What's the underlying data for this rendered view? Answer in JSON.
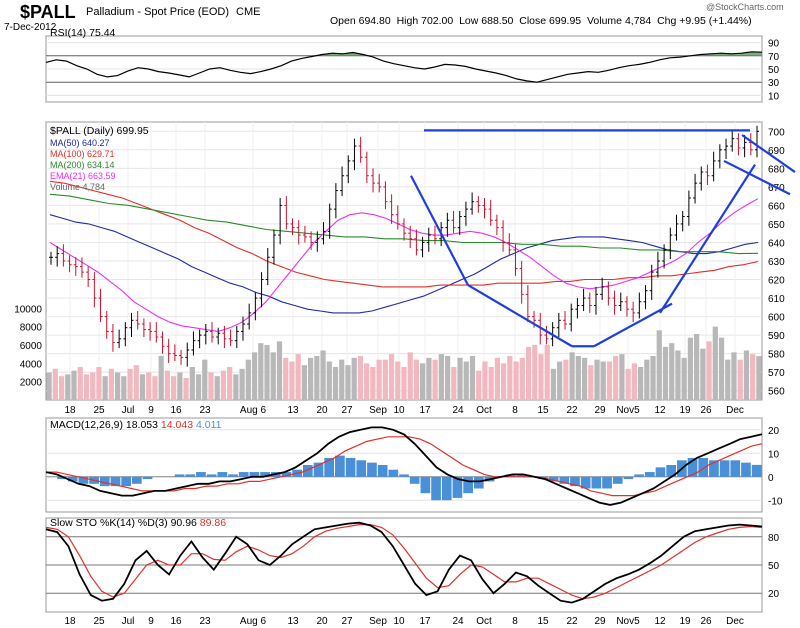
{
  "header": {
    "symbol": "$PALL",
    "name": "Palladium - Spot Price (EOD)",
    "exchange": "CME",
    "date": "7-Dec-2012",
    "open_label": "Open",
    "open": "694.80",
    "high_label": "High",
    "high": "702.00",
    "low_label": "Low",
    "low": "688.50",
    "close_label": "Close",
    "close": "699.95",
    "volume_label": "Volume",
    "volume": "4,784",
    "chg_label": "Chg",
    "chg": "+9.95 (+1.44%)",
    "watermark": "@StockCharts.com"
  },
  "colors": {
    "ma50": "#1f2aa8",
    "ma100": "#e0302a",
    "ma200": "#2c8a2c",
    "ema21": "#ee2fee",
    "price_up": "#000000",
    "price_down": "#c8102e",
    "trendline": "#1f3fdd",
    "macd_line": "#000000",
    "macd_signal": "#e0302a",
    "macd_hist": "#4a90d9",
    "rsi_fill": "#5a9a5a",
    "vol_up": "#b8b8b8",
    "vol_down": "#f2b8c0"
  },
  "chart_data": [
    {
      "type": "line",
      "panel": "RSI",
      "label": "RSI(14)",
      "value_label": "75.44",
      "ylim": [
        0,
        100
      ],
      "ticks": [
        90,
        70,
        50,
        30,
        10
      ],
      "reference_lines": [
        70,
        30
      ],
      "x": [
        0,
        2,
        4,
        6,
        8,
        10,
        12,
        14,
        16,
        18,
        20,
        22,
        24,
        26,
        28,
        30,
        32,
        34,
        36,
        38,
        40,
        42,
        44,
        46,
        48,
        50,
        52,
        54,
        56,
        58,
        60,
        62,
        64,
        66,
        68,
        70,
        72,
        74,
        76,
        78,
        80,
        82,
        84,
        86,
        88,
        90,
        92,
        94,
        96,
        98,
        100,
        102,
        104,
        106,
        108,
        110,
        112,
        114,
        116,
        118,
        120,
        122,
        124,
        126,
        128,
        130,
        132,
        134,
        136,
        138,
        140
      ],
      "values": [
        60,
        64,
        62,
        55,
        50,
        42,
        38,
        40,
        47,
        52,
        50,
        46,
        44,
        41,
        38,
        44,
        50,
        52,
        48,
        45,
        43,
        46,
        50,
        55,
        62,
        66,
        69,
        72,
        74,
        73,
        75,
        72,
        68,
        62,
        58,
        55,
        52,
        50,
        53,
        57,
        56,
        54,
        50,
        47,
        44,
        40,
        35,
        32,
        30,
        34,
        38,
        42,
        44,
        46,
        45,
        48,
        52,
        55,
        57,
        60,
        64,
        67,
        68,
        70,
        72,
        73,
        74,
        73,
        74,
        76,
        75.44
      ]
    },
    {
      "type": "ohlc",
      "panel": "Price",
      "title": "$PALL (Daily) 699.95",
      "ylim": [
        555,
        705
      ],
      "ticks": [
        700,
        690,
        680,
        670,
        660,
        650,
        640,
        630,
        620,
        610,
        600,
        590,
        580,
        570,
        560
      ],
      "x_ticks": [
        "18",
        "25",
        "Jul",
        "9",
        "16",
        "23",
        "Aug 6",
        "13",
        "20",
        "27",
        "Sep",
        "10",
        "17",
        "24",
        "Oct",
        "8",
        "15",
        "22",
        "29",
        "Nov5",
        "12",
        "19",
        "26",
        "Dec"
      ],
      "closes": [
        632,
        634,
        630,
        628,
        627,
        624,
        620,
        610,
        600,
        592,
        586,
        588,
        594,
        598,
        596,
        593,
        592,
        589,
        584,
        580,
        579,
        578,
        582,
        587,
        590,
        592,
        589,
        591,
        588,
        587,
        592,
        596,
        602,
        610,
        620,
        632,
        644,
        660,
        650,
        648,
        644,
        643,
        640,
        642,
        646,
        658,
        668,
        676,
        684,
        692,
        686,
        676,
        672,
        670,
        662,
        655,
        650,
        645,
        642,
        636,
        640,
        644,
        642,
        648,
        652,
        648,
        654,
        658,
        662,
        660,
        658,
        652,
        648,
        640,
        636,
        626,
        612,
        600,
        598,
        590,
        588,
        594,
        598,
        596,
        604,
        606,
        610,
        606,
        612,
        616,
        610,
        606,
        608,
        604,
        602,
        608,
        614,
        624,
        630,
        636,
        644,
        650,
        654,
        664,
        672,
        678,
        676,
        684,
        690,
        692,
        696,
        691,
        694,
        690,
        699.95
      ],
      "series": [
        {
          "name": "MA(50) 640.27",
          "values": [
            655,
            653,
            651,
            650,
            648,
            646,
            643,
            640,
            637,
            634,
            631,
            627,
            624,
            621,
            618,
            616,
            613,
            611,
            608,
            606,
            604,
            603,
            602,
            602,
            602,
            603,
            605,
            607,
            609,
            611,
            614,
            617,
            620,
            623,
            627,
            631,
            634,
            637,
            639,
            641,
            642,
            643,
            643,
            643,
            642,
            641,
            640,
            638,
            636,
            635,
            634,
            634,
            635,
            637,
            639,
            640
          ]
        },
        {
          "name": "MA(100) 629.71",
          "values": [
            673,
            672,
            670,
            668,
            666,
            664,
            661,
            658,
            655,
            652,
            648,
            645,
            641,
            637,
            634,
            630,
            627,
            624,
            622,
            620,
            619,
            618,
            617,
            616,
            616,
            616,
            616,
            617,
            617,
            617,
            617,
            618,
            618,
            618,
            618,
            619,
            619,
            620,
            620,
            620,
            621,
            621,
            622,
            622,
            623,
            624,
            625,
            627,
            628,
            629.71
          ]
        },
        {
          "name": "MA(200) 634.14",
          "values": [
            666,
            665,
            663,
            661,
            660,
            658,
            656,
            654,
            652,
            651,
            649,
            647,
            646,
            645,
            644,
            643,
            643,
            642,
            642,
            641,
            641,
            640,
            640,
            640,
            639,
            639,
            638,
            638,
            637,
            637,
            636,
            636,
            635,
            635,
            635,
            634,
            634.14
          ]
        },
        {
          "name": "EMA(21) 663.59",
          "values": [
            640,
            636,
            632,
            628,
            624,
            619,
            614,
            608,
            604,
            600,
            597,
            595,
            594,
            593,
            592,
            594,
            597,
            602,
            608,
            616,
            624,
            632,
            640,
            646,
            652,
            655,
            656,
            655,
            653,
            650,
            647,
            645,
            644,
            644,
            645,
            646,
            645,
            643,
            640,
            636,
            632,
            627,
            622,
            618,
            616,
            615,
            616,
            617,
            619,
            621,
            624,
            627,
            630,
            634,
            640,
            645,
            651,
            656,
            660,
            663.59
          ]
        }
      ],
      "volume": {
        "label": "Volume 4,784",
        "ticks": [
          10000,
          8000,
          6000,
          4000,
          2000
        ],
        "values": [
          3000,
          3400,
          2600,
          2800,
          3200,
          3600,
          2800,
          3000,
          3600,
          2600,
          3400,
          3000,
          2600,
          3400,
          3800,
          2800,
          3000,
          2600,
          4800,
          3200,
          2600,
          3000,
          2400,
          3600,
          2800,
          4400,
          3000,
          2600,
          3200,
          3600,
          2800,
          3400,
          4400,
          5200,
          6200,
          6000,
          5200,
          6400,
          4600,
          4200,
          5000,
          3800,
          4600,
          4800,
          5400,
          4200,
          3600,
          4400,
          3800,
          4600,
          4800,
          4000,
          3600,
          4400,
          4400,
          5000,
          4200,
          3600,
          5200,
          4400,
          4000,
          4600,
          4400,
          5000,
          4800,
          3600,
          4600,
          4200,
          4800,
          3200,
          4200,
          3600,
          4600,
          4000,
          4800,
          4200,
          4600,
          5800,
          6000,
          5000,
          6000,
          3400,
          4200,
          4400,
          5200,
          4800,
          4600,
          3800,
          4400,
          4200,
          4200,
          4800,
          5000,
          3400,
          4000,
          3600,
          4400,
          4800,
          7600,
          5800,
          6200,
          5400,
          4600,
          6800,
          7200,
          5600,
          6400,
          8000,
          6800,
          4400,
          5200,
          4400,
          5400,
          5000,
          4784
        ],
        "up": [
          1,
          0,
          0,
          1,
          1,
          0,
          0,
          0,
          0,
          1,
          0,
          1,
          1,
          0,
          0,
          1,
          0,
          0,
          1,
          0,
          0,
          1,
          0,
          1,
          1,
          1,
          0,
          1,
          0,
          0,
          1,
          1,
          1,
          1,
          1,
          1,
          1,
          1,
          0,
          0,
          0,
          1,
          1,
          1,
          1,
          1,
          1,
          1,
          1,
          1,
          0,
          0,
          0,
          0,
          0,
          0,
          0,
          0,
          0,
          0,
          1,
          1,
          0,
          1,
          1,
          0,
          1,
          1,
          1,
          0,
          0,
          0,
          0,
          0,
          0,
          0,
          0,
          0,
          0,
          0,
          0,
          1,
          1,
          0,
          1,
          1,
          1,
          0,
          1,
          1,
          0,
          0,
          1,
          0,
          0,
          1,
          1,
          1,
          1,
          1,
          1,
          1,
          1,
          1,
          1,
          1,
          0,
          1,
          1,
          1,
          1,
          0,
          1,
          0,
          1
        ]
      }
    },
    {
      "type": "line",
      "panel": "MACD",
      "label": "MACD(12,26,9)",
      "value_label": "18.053",
      "signal_label": "14.043",
      "hist_label": "4.011",
      "ylim": [
        -15,
        25
      ],
      "ticks": [
        20,
        10,
        0,
        -10
      ],
      "macd": [
        2,
        1,
        -1,
        -3,
        -4,
        -6,
        -7,
        -8,
        -8,
        -7,
        -6,
        -6,
        -5,
        -4,
        -3,
        -3,
        -2,
        -2,
        -1,
        0,
        0,
        1,
        2,
        4,
        7,
        10,
        14,
        17,
        19,
        20,
        21,
        21,
        20,
        18,
        14,
        9,
        4,
        1,
        -1,
        -2,
        -2,
        -1,
        0,
        1,
        1,
        0,
        -1,
        -3,
        -5,
        -7,
        -9,
        -11,
        -12,
        -11,
        -9,
        -7,
        -5,
        -2,
        1,
        5,
        8,
        10,
        12,
        14,
        16,
        17,
        18.053
      ],
      "signal": [
        2,
        2,
        1,
        0,
        -1,
        -2,
        -3,
        -4,
        -5,
        -6,
        -6,
        -6,
        -6,
        -5,
        -5,
        -4,
        -4,
        -3,
        -3,
        -2,
        -2,
        -1,
        0,
        1,
        2,
        4,
        6,
        8,
        11,
        13,
        15,
        16,
        17,
        17,
        17,
        16,
        14,
        11,
        8,
        5,
        3,
        1,
        0,
        0,
        0,
        0,
        0,
        -1,
        -2,
        -3,
        -4,
        -6,
        -7,
        -8,
        -8,
        -8,
        -7,
        -6,
        -4,
        -2,
        0,
        2,
        5,
        7,
        9,
        11,
        13,
        14.043
      ]
    },
    {
      "type": "line",
      "panel": "STO",
      "label": "Slow STO %K(14) %D(3)",
      "k_label": "90.96",
      "d_label": "89.86",
      "ylim": [
        0,
        100
      ],
      "ticks": [
        80,
        50,
        20
      ],
      "k": [
        88,
        85,
        70,
        40,
        18,
        12,
        14,
        30,
        55,
        65,
        50,
        40,
        60,
        75,
        58,
        45,
        62,
        80,
        72,
        55,
        50,
        60,
        72,
        80,
        88,
        90,
        92,
        94,
        95,
        92,
        85,
        70,
        50,
        30,
        18,
        22,
        45,
        60,
        55,
        35,
        20,
        30,
        42,
        38,
        28,
        20,
        12,
        10,
        14,
        22,
        30,
        36,
        40,
        45,
        52,
        60,
        70,
        80,
        86,
        88,
        90,
        92,
        93,
        92,
        90.96
      ],
      "d": [
        90,
        88,
        80,
        60,
        38,
        22,
        16,
        20,
        35,
        50,
        55,
        50,
        50,
        62,
        62,
        56,
        55,
        64,
        70,
        66,
        60,
        58,
        62,
        70,
        80,
        86,
        89,
        91,
        93,
        93,
        90,
        82,
        68,
        52,
        36,
        26,
        28,
        40,
        50,
        48,
        40,
        32,
        32,
        36,
        36,
        30,
        24,
        18,
        14,
        16,
        20,
        26,
        32,
        38,
        44,
        50,
        58,
        66,
        74,
        80,
        84,
        88,
        90,
        91,
        89.86
      ]
    }
  ]
}
